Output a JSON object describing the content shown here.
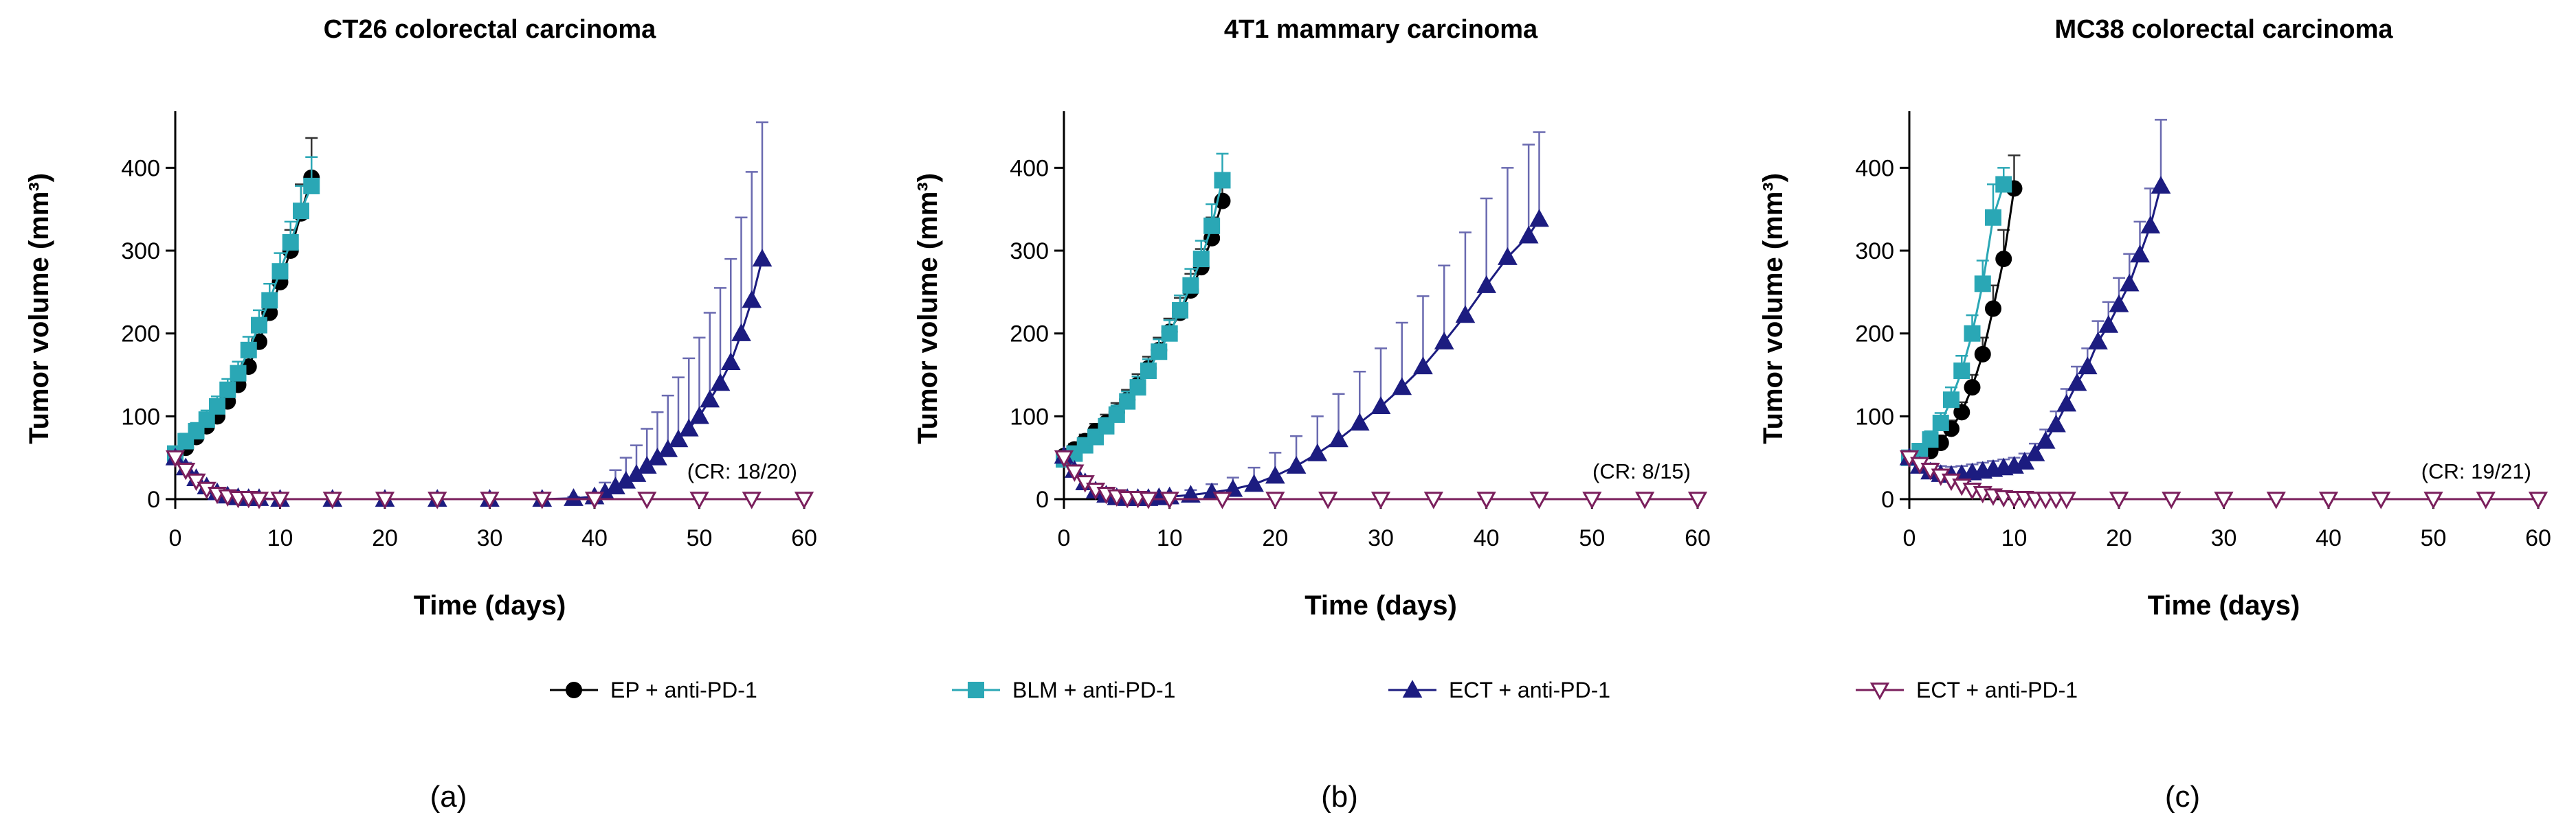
{
  "legend": [
    {
      "label": "EP + anti-PD-1",
      "color": "#000000",
      "marker": "circle"
    },
    {
      "label": "BLM + anti-PD-1",
      "color": "#2aa7b5",
      "marker": "square"
    },
    {
      "label": "ECT + anti-PD-1",
      "color": "#1c1c80",
      "marker": "triangle-up"
    },
    {
      "label": "ECT + anti-PD-1",
      "color": "#7a1f5c",
      "marker": "triangle-down-open"
    }
  ],
  "chart_data": [
    {
      "type": "line",
      "title": "CT26 colorectal carcinoma",
      "xlabel": "Time (days)",
      "ylabel": "Tumor volume (mm³)",
      "xlim": [
        0,
        60
      ],
      "ylim": [
        0,
        460
      ],
      "xticks": [
        0,
        10,
        20,
        30,
        40,
        50,
        60
      ],
      "yticks": [
        0,
        100,
        200,
        300,
        400
      ],
      "annotation": "(CR: 18/20)",
      "panel_label": "(a)",
      "series": [
        {
          "name": "EP + anti-PD-1",
          "x": [
            0,
            1,
            2,
            3,
            4,
            5,
            6,
            7,
            8,
            9,
            10,
            11,
            12,
            13
          ],
          "y": [
            52,
            62,
            75,
            88,
            100,
            118,
            138,
            160,
            190,
            225,
            262,
            300,
            345,
            388
          ],
          "err": [
            8,
            9,
            10,
            10,
            11,
            12,
            13,
            14,
            16,
            18,
            20,
            25,
            35,
            48
          ]
        },
        {
          "name": "BLM + anti-PD-1",
          "x": [
            0,
            1,
            2,
            3,
            4,
            5,
            6,
            7,
            8,
            9,
            10,
            11,
            12,
            13
          ],
          "y": [
            55,
            70,
            82,
            96,
            112,
            132,
            152,
            180,
            210,
            240,
            275,
            310,
            348,
            378
          ],
          "err": [
            8,
            9,
            10,
            11,
            12,
            13,
            14,
            16,
            18,
            20,
            22,
            25,
            30,
            35
          ]
        },
        {
          "name": "ECT + anti-PD-1",
          "x": [
            0,
            1,
            2,
            3,
            4,
            5,
            6,
            7,
            8,
            10,
            15,
            20,
            25,
            30,
            35,
            38,
            40,
            41,
            42,
            43,
            44,
            45,
            46,
            47,
            48,
            49,
            50,
            51,
            52,
            53,
            54,
            55,
            56
          ],
          "y": [
            50,
            38,
            25,
            15,
            8,
            4,
            2,
            1,
            1,
            0,
            0,
            0,
            0,
            0,
            0,
            1,
            3,
            8,
            15,
            22,
            30,
            40,
            50,
            60,
            72,
            85,
            100,
            120,
            140,
            165,
            200,
            240,
            290
          ],
          "err": [
            6,
            6,
            5,
            4,
            3,
            2,
            1,
            1,
            1,
            0,
            0,
            0,
            0,
            0,
            0,
            2,
            5,
            12,
            20,
            28,
            35,
            45,
            55,
            65,
            75,
            85,
            95,
            105,
            115,
            125,
            140,
            155,
            165
          ]
        },
        {
          "name": "ECT + anti-PD-1",
          "x": [
            0,
            1,
            2,
            3,
            4,
            5,
            6,
            7,
            8,
            10,
            15,
            20,
            25,
            30,
            35,
            40,
            45,
            50,
            55,
            60
          ],
          "y": [
            50,
            35,
            22,
            12,
            6,
            3,
            1,
            1,
            0,
            0,
            0,
            0,
            0,
            0,
            0,
            0,
            0,
            0,
            0,
            0
          ],
          "err": [
            6,
            5,
            4,
            3,
            2,
            1,
            1,
            0,
            0,
            0,
            0,
            0,
            0,
            0,
            0,
            0,
            0,
            0,
            0,
            0
          ]
        }
      ]
    },
    {
      "type": "line",
      "title": "4T1 mammary carcinoma",
      "xlabel": "Time (days)",
      "ylabel": "Tumor volume (mm³)",
      "xlim": [
        0,
        60
      ],
      "ylim": [
        0,
        460
      ],
      "xticks": [
        0,
        10,
        20,
        30,
        40,
        50,
        60
      ],
      "yticks": [
        0,
        100,
        200,
        300,
        400
      ],
      "annotation": "(CR: 8/15)",
      "panel_label": "(b)",
      "series": [
        {
          "name": "EP + anti-PD-1",
          "x": [
            0,
            1,
            2,
            3,
            4,
            5,
            6,
            7,
            8,
            9,
            10,
            11,
            12,
            13,
            14,
            15
          ],
          "y": [
            52,
            60,
            70,
            82,
            92,
            105,
            120,
            138,
            158,
            180,
            202,
            225,
            252,
            280,
            315,
            360
          ],
          "err": [
            6,
            7,
            8,
            9,
            10,
            11,
            12,
            13,
            14,
            15,
            16,
            18,
            20,
            22,
            25,
            30
          ]
        },
        {
          "name": "BLM + anti-PD-1",
          "x": [
            0,
            1,
            2,
            3,
            4,
            5,
            6,
            7,
            8,
            9,
            10,
            11,
            12,
            13,
            14,
            15
          ],
          "y": [
            48,
            55,
            65,
            75,
            88,
            102,
            118,
            135,
            155,
            178,
            200,
            228,
            258,
            290,
            330,
            385
          ],
          "err": [
            6,
            7,
            8,
            9,
            10,
            11,
            12,
            13,
            14,
            15,
            16,
            18,
            20,
            22,
            26,
            32
          ]
        },
        {
          "name": "ECT + anti-PD-1",
          "x": [
            0,
            1,
            2,
            3,
            4,
            5,
            6,
            7,
            8,
            9,
            10,
            12,
            14,
            16,
            18,
            20,
            22,
            24,
            26,
            28,
            30,
            32,
            34,
            36,
            38,
            40,
            42,
            44,
            45
          ],
          "y": [
            52,
            35,
            20,
            10,
            5,
            2,
            1,
            1,
            1,
            2,
            3,
            5,
            8,
            12,
            18,
            28,
            40,
            55,
            72,
            92,
            112,
            135,
            160,
            190,
            222,
            258,
            292,
            318,
            338
          ],
          "err": [
            6,
            6,
            5,
            4,
            3,
            2,
            2,
            2,
            2,
            3,
            4,
            6,
            10,
            14,
            20,
            28,
            36,
            45,
            55,
            62,
            70,
            78,
            85,
            92,
            100,
            105,
            108,
            110,
            105
          ]
        },
        {
          "name": "ECT + anti-PD-1",
          "x": [
            0,
            1,
            2,
            3,
            4,
            5,
            6,
            7,
            8,
            10,
            15,
            20,
            25,
            30,
            35,
            40,
            45,
            50,
            55,
            60
          ],
          "y": [
            50,
            33,
            20,
            11,
            6,
            3,
            1,
            1,
            0,
            0,
            0,
            0,
            0,
            0,
            0,
            0,
            0,
            0,
            0,
            0
          ],
          "err": [
            6,
            5,
            4,
            3,
            2,
            1,
            1,
            0,
            0,
            0,
            0,
            0,
            0,
            0,
            0,
            0,
            0,
            0,
            0,
            0
          ]
        }
      ]
    },
    {
      "type": "line",
      "title": "MC38 colorectal carcinoma",
      "xlabel": "Time (days)",
      "ylabel": "Tumor volume (mm³)",
      "xlim": [
        0,
        60
      ],
      "ylim": [
        0,
        460
      ],
      "xticks": [
        0,
        10,
        20,
        30,
        40,
        50,
        60
      ],
      "yticks": [
        0,
        100,
        200,
        300,
        400
      ],
      "annotation": "(CR: 19/21)",
      "panel_label": "(c)",
      "series": [
        {
          "name": "EP + anti-PD-1",
          "x": [
            0,
            1,
            2,
            3,
            4,
            5,
            6,
            7,
            8,
            9,
            10
          ],
          "y": [
            50,
            52,
            58,
            68,
            85,
            105,
            135,
            175,
            230,
            290,
            375
          ],
          "err": [
            6,
            7,
            8,
            9,
            10,
            12,
            15,
            20,
            28,
            35,
            40
          ]
        },
        {
          "name": "BLM + anti-PD-1",
          "x": [
            0,
            1,
            2,
            3,
            4,
            5,
            6,
            7,
            8,
            9
          ],
          "y": [
            50,
            58,
            72,
            92,
            120,
            155,
            200,
            260,
            340,
            380
          ],
          "err": [
            7,
            8,
            10,
            12,
            15,
            18,
            22,
            28,
            40,
            20
          ]
        },
        {
          "name": "ECT + anti-PD-1",
          "x": [
            0,
            1,
            2,
            3,
            4,
            5,
            6,
            7,
            8,
            9,
            10,
            11,
            12,
            13,
            14,
            15,
            16,
            17,
            18,
            19,
            20,
            21,
            22,
            23,
            24
          ],
          "y": [
            50,
            40,
            33,
            30,
            29,
            30,
            32,
            34,
            36,
            38,
            40,
            45,
            55,
            70,
            90,
            115,
            140,
            160,
            190,
            210,
            235,
            260,
            295,
            330,
            378
          ],
          "err": [
            8,
            10,
            10,
            10,
            10,
            10,
            10,
            10,
            10,
            10,
            10,
            10,
            12,
            14,
            16,
            18,
            20,
            22,
            25,
            28,
            32,
            36,
            40,
            45,
            80
          ]
        },
        {
          "name": "ECT + anti-PD-1",
          "x": [
            0,
            1,
            2,
            3,
            4,
            5,
            6,
            7,
            8,
            9,
            10,
            11,
            12,
            13,
            14,
            15,
            20,
            25,
            30,
            35,
            40,
            45,
            50,
            55,
            60
          ],
          "y": [
            50,
            42,
            35,
            28,
            22,
            16,
            11,
            7,
            4,
            2,
            1,
            1,
            0,
            0,
            0,
            0,
            0,
            0,
            0,
            0,
            0,
            0,
            0,
            0,
            0
          ],
          "err": [
            6,
            6,
            5,
            4,
            4,
            3,
            3,
            2,
            2,
            1,
            1,
            0,
            0,
            0,
            0,
            0,
            0,
            0,
            0,
            0,
            0,
            0,
            0,
            0,
            0
          ]
        }
      ]
    }
  ]
}
